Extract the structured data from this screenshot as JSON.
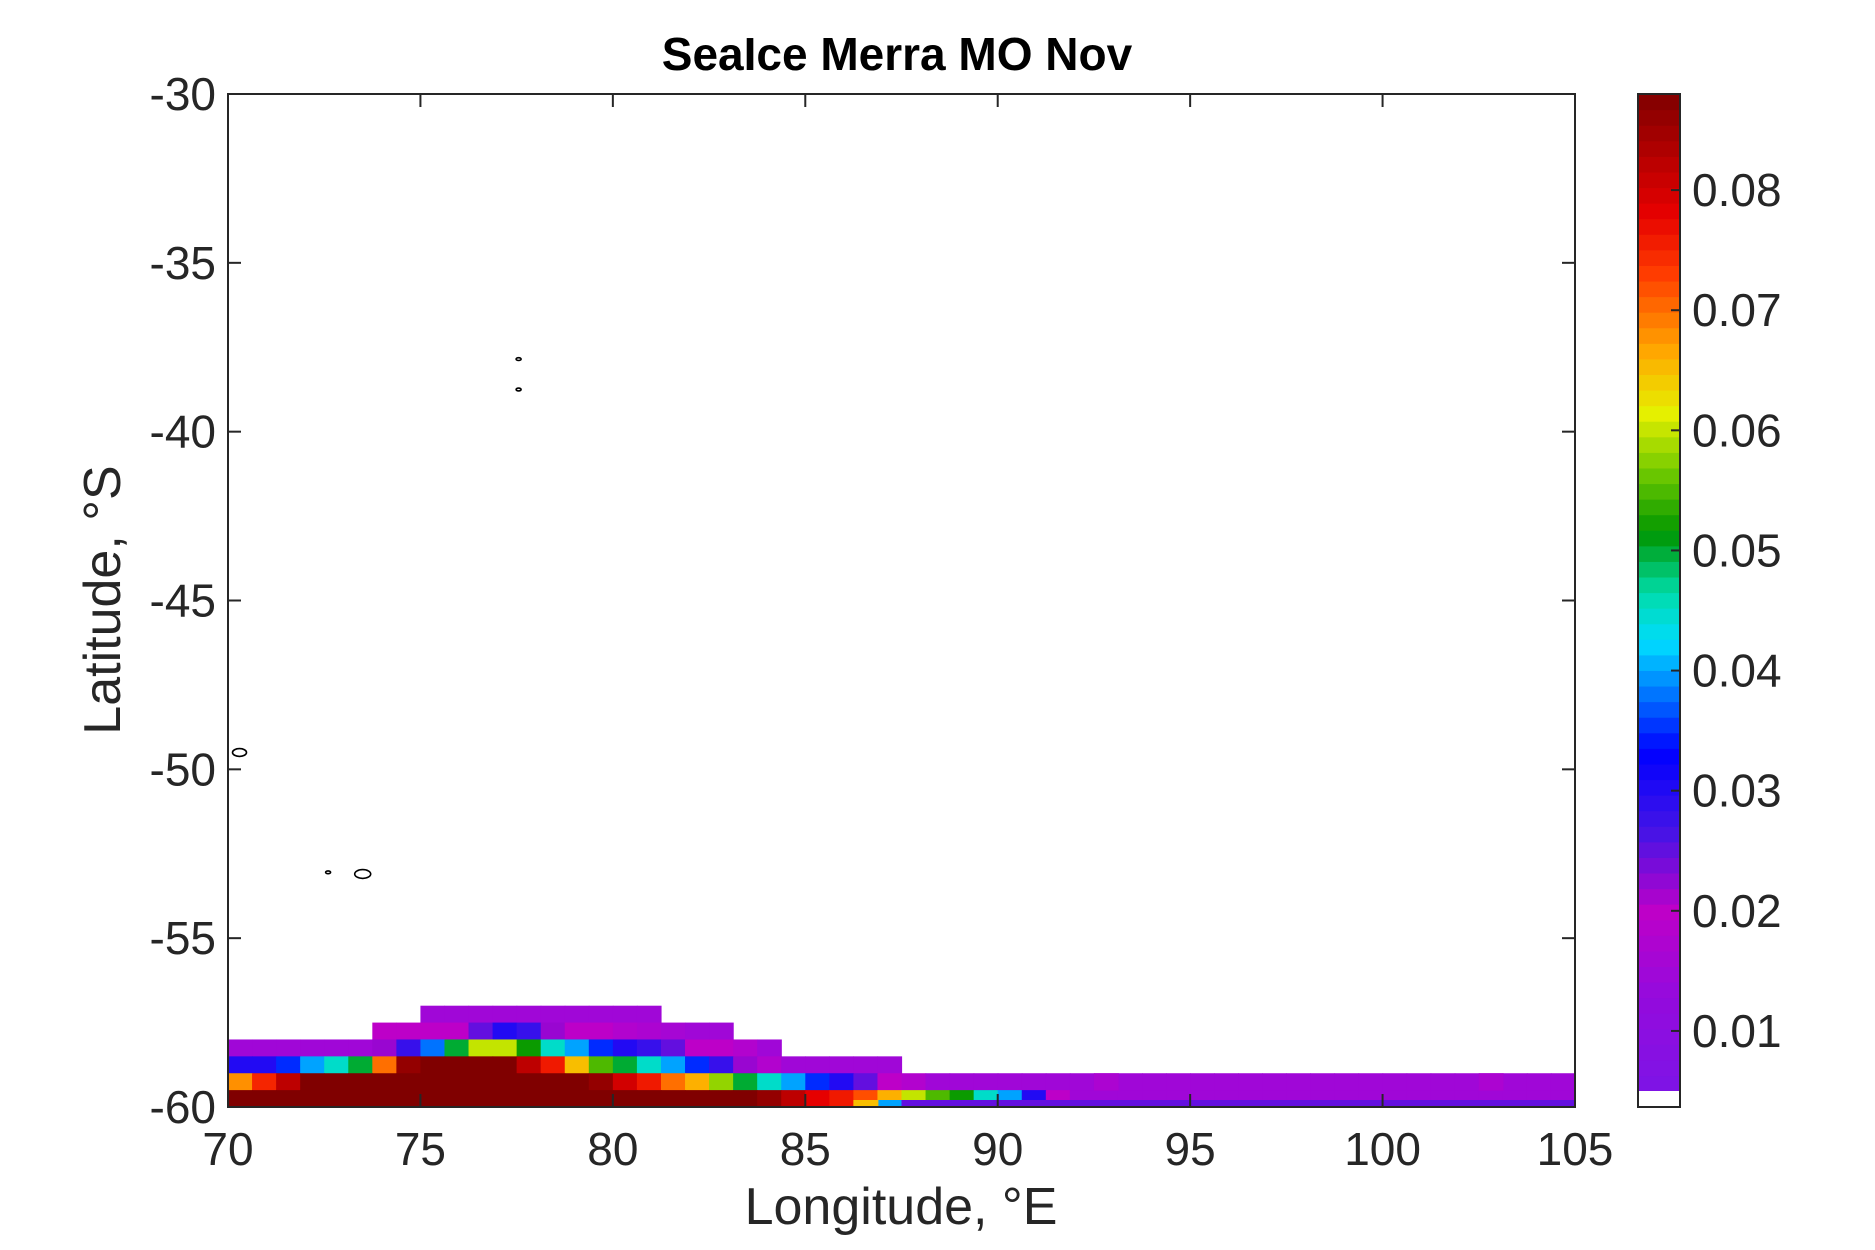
{
  "chart_data": {
    "type": "heatmap",
    "title": "SeaIce Merra MO Nov",
    "xlabel": "Longitude, °E",
    "ylabel": "Latitude, °S",
    "xlim": [
      70,
      105
    ],
    "ylim": [
      -60,
      -30
    ],
    "xticks": [
      70,
      75,
      80,
      85,
      90,
      95,
      100,
      105
    ],
    "yticks": [
      -30,
      -35,
      -40,
      -45,
      -50,
      -55,
      -60
    ],
    "xtick_labels": [
      "70",
      "75",
      "80",
      "85",
      "90",
      "95",
      "100",
      "105"
    ],
    "ytick_labels": [
      "-30",
      "-35",
      "-40",
      "-45",
      "-50",
      "-55",
      "-60"
    ],
    "colorbar": {
      "colormap": "jet-like (purple-blue-cyan-green-yellow-red-darkred)",
      "range": [
        0.005,
        0.088
      ],
      "ticks": [
        0.01,
        0.02,
        0.03,
        0.04,
        0.05,
        0.06,
        0.07,
        0.08
      ],
      "tick_labels": [
        "0.01",
        "0.02",
        "0.03",
        "0.04",
        "0.05",
        "0.06",
        "0.07",
        "0.08"
      ],
      "below_range_color": "#ffffff"
    },
    "grid": false,
    "cell_size_degrees": [
      0.625,
      0.5
    ],
    "lat_rows": [
      -57.25,
      -57.75,
      -58.25,
      -58.75,
      -59.25,
      -59.75
    ],
    "row_cells": [
      {
        "lat": -57.25,
        "lon_start": 75.0,
        "values": [
          0.015,
          0.015,
          0.015,
          0.015,
          0.015,
          0.015,
          0.015,
          0.015,
          0.015,
          0.015
        ]
      },
      {
        "lat": -57.75,
        "lon_start": 73.75,
        "values": [
          0.02,
          0.02,
          0.02,
          0.02,
          0.025,
          0.03,
          0.028,
          0.022,
          0.02,
          0.02,
          0.018,
          0.017,
          0.016,
          0.015,
          0.015
        ]
      },
      {
        "lat": -58.25,
        "lon_start": 70.0,
        "values": [
          0.015,
          0.015,
          0.015,
          0.015,
          0.015,
          0.015,
          0.022,
          0.028,
          0.038,
          0.05,
          0.06,
          0.06,
          0.052,
          0.045,
          0.04,
          0.035,
          0.03,
          0.028,
          0.025,
          0.02,
          0.02,
          0.018,
          0.015
        ]
      },
      {
        "lat": -58.75,
        "lon_start": 70.0,
        "values": [
          0.03,
          0.03,
          0.035,
          0.04,
          0.045,
          0.05,
          0.07,
          0.086,
          0.088,
          0.088,
          0.088,
          0.088,
          0.082,
          0.076,
          0.065,
          0.055,
          0.05,
          0.045,
          0.04,
          0.035,
          0.028,
          0.022,
          0.018,
          0.015,
          0.015,
          0.015,
          0.015,
          0.015
        ]
      },
      {
        "lat": -59.25,
        "lon_start": 70.0,
        "values": [
          0.068,
          0.075,
          0.082,
          0.088,
          0.088,
          0.088,
          0.088,
          0.088,
          0.088,
          0.088,
          0.088,
          0.088,
          0.088,
          0.088,
          0.088,
          0.086,
          0.08,
          0.076,
          0.07,
          0.066,
          0.058,
          0.05,
          0.045,
          0.04,
          0.035,
          0.03,
          0.025,
          0.02,
          0.018,
          0.015,
          0.015,
          0.015,
          0.015,
          0.015,
          0.015,
          0.015,
          0.015,
          0.015,
          0.015,
          0.015,
          0.015,
          0.015,
          0.015,
          0.015,
          0.015,
          0.015,
          0.015,
          0.015,
          0.015,
          0.015,
          0.015,
          0.015,
          0.015,
          0.015,
          0.015,
          0.015
        ]
      },
      {
        "lat": -59.75,
        "lon_start": 70.0,
        "values": [
          0.088,
          0.088,
          0.088,
          0.088,
          0.088,
          0.088,
          0.088,
          0.088,
          0.088,
          0.088,
          0.088,
          0.088,
          0.088,
          0.088,
          0.088,
          0.088,
          0.088,
          0.088,
          0.088,
          0.088,
          0.088,
          0.088,
          0.086,
          0.082,
          0.078,
          0.076,
          0.072,
          0.066,
          0.06,
          0.055,
          0.052,
          0.045,
          0.04,
          0.03,
          0.02,
          0.015,
          0.015,
          0.015,
          0.015,
          0.015,
          0.015,
          0.015,
          0.015,
          0.015,
          0.015,
          0.015,
          0.015,
          0.015,
          0.015,
          0.015,
          0.015,
          0.015,
          0.015,
          0.015,
          0.015,
          0.015
        ]
      }
    ],
    "extra_cells": [
      {
        "lat": -59.25,
        "lon_start": 92.5,
        "width": 0.625,
        "value": 0.017
      },
      {
        "lat": -59.25,
        "lon_start": 102.5,
        "width": 0.625,
        "value": 0.017
      }
    ],
    "bottom_strip": [
      {
        "lon_start": 86.25,
        "lon_end": 86.9,
        "value": 0.065
      },
      {
        "lon_start": 86.9,
        "lon_end": 87.5,
        "value": 0.04
      },
      {
        "lon_start": 87.5,
        "lon_end": 105.0,
        "value": 0.025
      }
    ],
    "coastline_islands": [
      {
        "lon": 77.55,
        "lat": -37.85
      },
      {
        "lon": 77.55,
        "lat": -38.75
      },
      {
        "lon": 70.3,
        "lat": -49.5
      },
      {
        "lon": 73.5,
        "lat": -53.1
      },
      {
        "lon": 72.6,
        "lat": -53.05
      }
    ]
  }
}
